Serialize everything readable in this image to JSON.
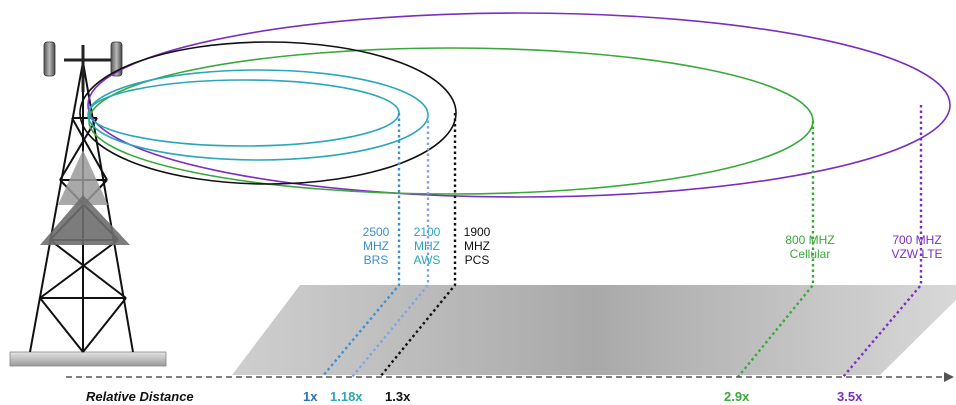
{
  "axis": {
    "title": "Relative Distance"
  },
  "bands": [
    {
      "id": "brs",
      "lines": [
        "2500",
        "MHZ",
        "BRS"
      ],
      "multiplier": "1x",
      "color": "#3a8fd6"
    },
    {
      "id": "aws",
      "lines": [
        "2100",
        "MHZ",
        "AWS"
      ],
      "multiplier": "1.18x",
      "color": "#2aa7b8"
    },
    {
      "id": "pcs",
      "lines": [
        "1900",
        "MHZ",
        "PCS"
      ],
      "multiplier": "1.3x",
      "color": "#111111"
    },
    {
      "id": "cellular",
      "lines": [
        "800 MHZ",
        "Cellular"
      ],
      "multiplier": "2.9x",
      "color": "#3aa83a"
    },
    {
      "id": "lte",
      "lines": [
        "700 MHZ",
        "VZW LTE"
      ],
      "multiplier": "3.5x",
      "color": "#7a2fc0"
    }
  ],
  "colors": {
    "aws_label": "#2aa7b8",
    "brs_label": "#3a8fd6",
    "lte_label": "#7a2fc0",
    "cellular_label": "#3aa83a",
    "pcs_label": "#111111",
    "mult_brs": "#2a6fc0"
  }
}
